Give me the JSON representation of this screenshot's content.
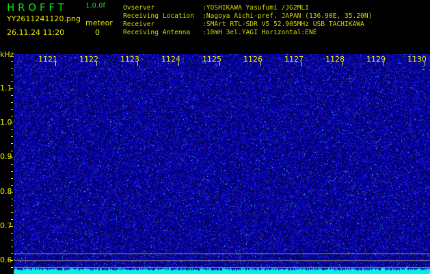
{
  "header": {
    "title": "H R O F F T",
    "version": "1.0.0f",
    "filename": "YY2611241120.png",
    "datetime": "26.11.24 11:20",
    "meteor_label": "meteor",
    "meteor_count": "0",
    "info": [
      {
        "label": "Ovserver",
        "value": ":YOSHIKAWA Yasufumi /JG2MLI"
      },
      {
        "label": "Receiving Location",
        "value": ":Nagoya Aichi-pref. JAPAN (136.90E, 35.20N)"
      },
      {
        "label": "Receiver",
        "value": ":SMArt RTL-SDR V5 52.905MHz USB TACHIKAWA"
      },
      {
        "label": "Receiving Antenna",
        "value": ":10mH 3el.YAGI Horizontal:ENE"
      }
    ]
  },
  "spectrogram": {
    "unit": "kHz",
    "x_labels": [
      "1121",
      "1122",
      "1123",
      "1124",
      "1125",
      "1126",
      "1127",
      "1128",
      "1129",
      "1130"
    ],
    "y_labels": [
      "1.1",
      "1.0",
      "0.9",
      "0.8",
      "0.7",
      "0.6"
    ],
    "colors": {
      "background": "#000010",
      "signal": "#2020d0",
      "peak": "#00ffff",
      "text": "#f0f000"
    }
  }
}
